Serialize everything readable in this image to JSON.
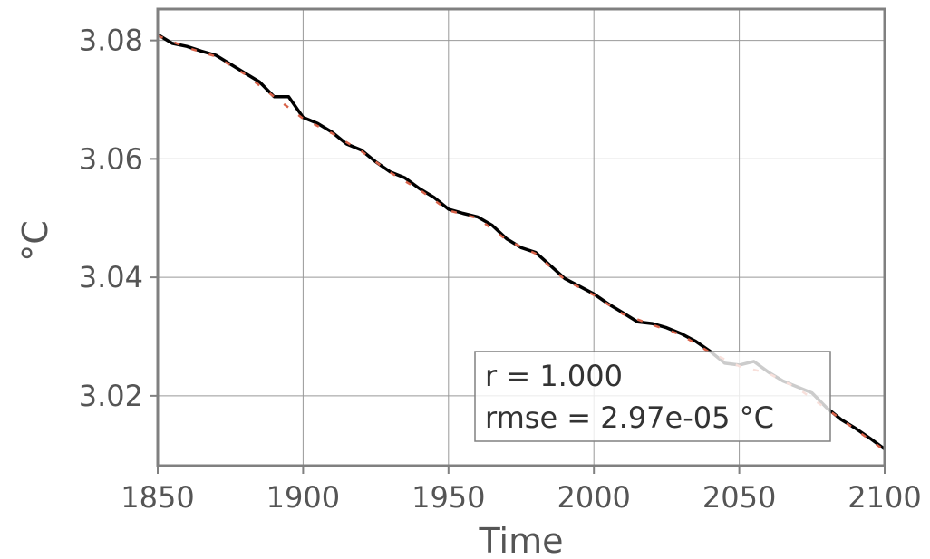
{
  "chart_data": {
    "type": "line",
    "title": "",
    "xlabel": "Time",
    "ylabel": "°C",
    "xlim": [
      1850,
      2100
    ],
    "ylim": [
      3.0082,
      3.0853
    ],
    "xticks": [
      "1850",
      "1900",
      "1950",
      "2000",
      "2050",
      "2100"
    ],
    "yticks": [
      "3.02",
      "3.04",
      "3.06",
      "3.08"
    ],
    "grid": true,
    "series": [
      {
        "color": "#000000",
        "x": [
          1850,
          1855,
          1860,
          1865,
          1870,
          1875,
          1880,
          1885,
          1890,
          1895,
          1900,
          1905,
          1910,
          1915,
          1920,
          1925,
          1930,
          1935,
          1940,
          1945,
          1950,
          1955,
          1960,
          1965,
          1970,
          1975,
          1980,
          1985,
          1990,
          1995,
          2000,
          2005,
          2010,
          2015,
          2020,
          2025,
          2030,
          2035,
          2040,
          2045,
          2050,
          2055,
          2060,
          2065,
          2070,
          2075,
          2080,
          2085,
          2090,
          2095,
          2100
        ],
        "y": [
          3.081,
          3.0795,
          3.079,
          3.0782,
          3.0775,
          3.076,
          3.0745,
          3.073,
          3.0705,
          3.0705,
          3.067,
          3.066,
          3.0645,
          3.0625,
          3.0615,
          3.0595,
          3.0578,
          3.0568,
          3.055,
          3.0535,
          3.0515,
          3.0508,
          3.0502,
          3.0488,
          3.0465,
          3.045,
          3.0442,
          3.042,
          3.0398,
          3.0385,
          3.0372,
          3.0355,
          3.034,
          3.0325,
          3.0322,
          3.0315,
          3.0305,
          3.0292,
          3.0275,
          3.0255,
          3.0252,
          3.0258,
          3.024,
          3.0225,
          3.0215,
          3.0205,
          3.018,
          3.016,
          3.0145,
          3.0128,
          3.011
        ]
      },
      {
        "color": "#d9634a",
        "dashed": true,
        "x": [
          1850,
          1860,
          1870,
          1880,
          1890,
          1900,
          1910,
          1920,
          1930,
          1940,
          1950,
          1960,
          1970,
          1980,
          1990,
          2000,
          2010,
          2020,
          2030,
          2040,
          2050,
          2060,
          2070,
          2080,
          2090,
          2100
        ],
        "y": [
          3.0808,
          3.0788,
          3.0773,
          3.0743,
          3.0705,
          3.0668,
          3.0643,
          3.0613,
          3.0577,
          3.0548,
          3.0513,
          3.05,
          3.0463,
          3.044,
          3.0396,
          3.037,
          3.0338,
          3.032,
          3.0303,
          3.0273,
          3.025,
          3.0238,
          3.0213,
          3.0178,
          3.0143,
          3.0108
        ]
      }
    ],
    "annotation": [
      "r = 1.000",
      "rmse = 2.97e-05 °C"
    ]
  },
  "colors": {
    "frame": "#808080",
    "grid": "#999999",
    "tick_text": "#555555"
  }
}
